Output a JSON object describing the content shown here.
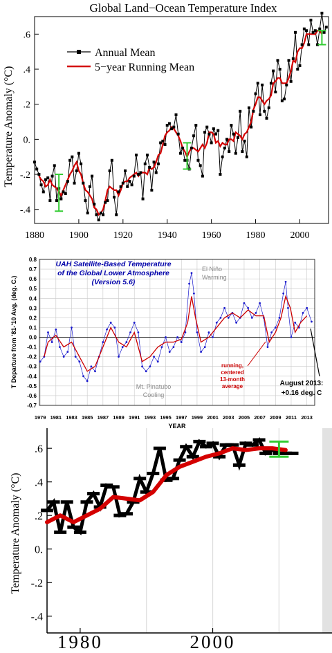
{
  "colors": {
    "annual": "#000000",
    "running": "#d40000",
    "errorbar": "#33cc33",
    "uah_points": "#1a1acc",
    "uah_running": "#cc0000",
    "uah_title": "#0000aa",
    "grid": "#c8c8c8"
  },
  "chart_data": [
    {
      "type": "line",
      "title": "Global Land−Ocean Temperature Index",
      "ylabel": "Temperature Anomaly (°C)",
      "xlim": [
        1880,
        2013
      ],
      "ylim": [
        -0.48,
        0.7
      ],
      "xticks": [
        "1880",
        "1900",
        "1920",
        "1940",
        "1960",
        "1980",
        "2000"
      ],
      "yticks": [
        ".6",
        ".4",
        ".2",
        "0.",
        "-.2",
        "-.4"
      ],
      "grid": false,
      "legend_position": "top-left",
      "legend": [
        "Annual Mean",
        "5−year Running Mean"
      ],
      "series": [
        {
          "name": "Annual Mean",
          "x": [
            1880,
            1881,
            1882,
            1883,
            1884,
            1885,
            1886,
            1887,
            1888,
            1889,
            1890,
            1891,
            1892,
            1893,
            1894,
            1895,
            1896,
            1897,
            1898,
            1899,
            1900,
            1901,
            1902,
            1903,
            1904,
            1905,
            1906,
            1907,
            1908,
            1909,
            1910,
            1911,
            1912,
            1913,
            1914,
            1915,
            1916,
            1917,
            1918,
            1919,
            1920,
            1921,
            1922,
            1923,
            1924,
            1925,
            1926,
            1927,
            1928,
            1929,
            1930,
            1931,
            1932,
            1933,
            1934,
            1935,
            1936,
            1937,
            1938,
            1939,
            1940,
            1941,
            1942,
            1943,
            1944,
            1945,
            1946,
            1947,
            1948,
            1949,
            1950,
            1951,
            1952,
            1953,
            1954,
            1955,
            1956,
            1957,
            1958,
            1959,
            1960,
            1961,
            1962,
            1963,
            1964,
            1965,
            1966,
            1967,
            1968,
            1969,
            1970,
            1971,
            1972,
            1973,
            1974,
            1975,
            1976,
            1977,
            1978,
            1979,
            1980,
            1981,
            1982,
            1983,
            1984,
            1985,
            1986,
            1987,
            1988,
            1989,
            1990,
            1991,
            1992,
            1993,
            1994,
            1995,
            1996,
            1997,
            1998,
            1999,
            2000,
            2001,
            2002,
            2003,
            2004,
            2005,
            2006,
            2007,
            2008,
            2009,
            2010,
            2011,
            2012
          ],
          "values": [
            -0.13,
            -0.17,
            -0.2,
            -0.26,
            -0.3,
            -0.23,
            -0.22,
            -0.35,
            -0.21,
            -0.15,
            -0.35,
            -0.28,
            -0.34,
            -0.3,
            -0.31,
            -0.24,
            -0.12,
            -0.1,
            -0.25,
            -0.18,
            -0.08,
            -0.14,
            -0.25,
            -0.35,
            -0.42,
            -0.27,
            -0.21,
            -0.37,
            -0.43,
            -0.46,
            -0.42,
            -0.43,
            -0.36,
            -0.35,
            -0.18,
            -0.12,
            -0.33,
            -0.43,
            -0.3,
            -0.27,
            -0.25,
            -0.18,
            -0.27,
            -0.24,
            -0.26,
            -0.21,
            -0.09,
            -0.2,
            -0.19,
            -0.34,
            -0.14,
            -0.09,
            -0.16,
            -0.29,
            -0.13,
            -0.19,
            -0.14,
            -0.02,
            -0.01,
            -0.03,
            0.08,
            0.09,
            0.06,
            0.07,
            0.14,
            0.03,
            -0.08,
            -0.05,
            -0.12,
            -0.12,
            -0.17,
            -0.05,
            0.02,
            0.08,
            -0.12,
            -0.15,
            -0.21,
            0.04,
            0.07,
            0.03,
            -0.02,
            0.06,
            0.03,
            0.05,
            -0.2,
            -0.1,
            -0.05,
            0.0,
            -0.07,
            0.08,
            0.03,
            -0.08,
            0.01,
            0.16,
            -0.07,
            -0.01,
            -0.1,
            0.18,
            0.07,
            0.16,
            0.26,
            0.32,
            0.14,
            0.31,
            0.16,
            0.12,
            0.18,
            0.32,
            0.39,
            0.27,
            0.45,
            0.4,
            0.22,
            0.23,
            0.31,
            0.45,
            0.33,
            0.46,
            0.61,
            0.4,
            0.42,
            0.54,
            0.63,
            0.62,
            0.54,
            0.68,
            0.61,
            0.62,
            0.54,
            0.63,
            0.72,
            0.61,
            0.64
          ]
        },
        {
          "name": "5−year Running Mean",
          "x": [
            1882,
            1883,
            1884,
            1885,
            1886,
            1887,
            1888,
            1889,
            1890,
            1891,
            1892,
            1893,
            1894,
            1895,
            1896,
            1897,
            1898,
            1899,
            1900,
            1901,
            1902,
            1903,
            1904,
            1905,
            1906,
            1907,
            1908,
            1909,
            1910,
            1911,
            1912,
            1913,
            1914,
            1915,
            1916,
            1917,
            1918,
            1919,
            1920,
            1921,
            1922,
            1923,
            1924,
            1925,
            1926,
            1927,
            1928,
            1929,
            1930,
            1931,
            1932,
            1933,
            1934,
            1935,
            1936,
            1937,
            1938,
            1939,
            1940,
            1941,
            1942,
            1943,
            1944,
            1945,
            1946,
            1947,
            1948,
            1949,
            1950,
            1951,
            1952,
            1953,
            1954,
            1955,
            1956,
            1957,
            1958,
            1959,
            1960,
            1961,
            1962,
            1963,
            1964,
            1965,
            1966,
            1967,
            1968,
            1969,
            1970,
            1971,
            1972,
            1973,
            1974,
            1975,
            1976,
            1977,
            1978,
            1979,
            1980,
            1981,
            1982,
            1983,
            1984,
            1985,
            1986,
            1987,
            1988,
            1989,
            1990,
            1991,
            1992,
            1993,
            1994,
            1995,
            1996,
            1997,
            1998,
            1999,
            2000,
            2001,
            2002,
            2003,
            2004,
            2005,
            2006,
            2007,
            2008,
            2009,
            2010
          ],
          "values": [
            -0.21,
            -0.23,
            -0.24,
            -0.27,
            -0.26,
            -0.23,
            -0.26,
            -0.27,
            -0.28,
            -0.3,
            -0.32,
            -0.29,
            -0.26,
            -0.23,
            -0.2,
            -0.18,
            -0.15,
            -0.13,
            -0.18,
            -0.2,
            -0.25,
            -0.29,
            -0.3,
            -0.32,
            -0.34,
            -0.39,
            -0.4,
            -0.43,
            -0.42,
            -0.4,
            -0.35,
            -0.29,
            -0.27,
            -0.28,
            -0.29,
            -0.29,
            -0.32,
            -0.29,
            -0.25,
            -0.24,
            -0.24,
            -0.22,
            -0.21,
            -0.2,
            -0.19,
            -0.21,
            -0.19,
            -0.19,
            -0.19,
            -0.2,
            -0.16,
            -0.17,
            -0.16,
            -0.13,
            -0.09,
            -0.08,
            -0.03,
            0.02,
            0.04,
            0.05,
            0.07,
            0.06,
            0.04,
            0.02,
            -0.01,
            -0.05,
            -0.07,
            -0.1,
            -0.07,
            -0.05,
            -0.05,
            -0.06,
            -0.07,
            -0.05,
            -0.03,
            -0.05,
            -0.02,
            0.04,
            0.04,
            0.03,
            -0.02,
            -0.01,
            -0.04,
            -0.02,
            -0.03,
            -0.03,
            0.0,
            0.0,
            -0.01,
            0.04,
            0.03,
            0.02,
            0.0,
            0.03,
            0.04,
            0.07,
            0.1,
            0.17,
            0.2,
            0.24,
            0.24,
            0.22,
            0.2,
            0.22,
            0.23,
            0.25,
            0.32,
            0.33,
            0.35,
            0.35,
            0.32,
            0.32,
            0.32,
            0.35,
            0.39,
            0.45,
            0.44,
            0.5,
            0.52,
            0.52,
            0.55,
            0.6,
            0.6,
            0.6,
            0.6,
            0.6,
            0.62,
            0.62,
            0.6
          ]
        }
      ],
      "uncertainty": [
        {
          "x": 1891,
          "low": -0.41,
          "high": -0.2
        },
        {
          "x": 1949,
          "low": -0.17,
          "high": -0.02
        },
        {
          "x": 2010,
          "low": 0.54,
          "high": 0.62
        }
      ]
    },
    {
      "type": "line",
      "title": "UAH Satellite-Based Temperature\nof the Global Lower Atmosphere\n(Version 5.6)",
      "title_lines": [
        "UAH Satellite-Based Temperature",
        "of the Global Lower Atmosphere",
        "(Version 5.6)"
      ],
      "ylabel": "T Departure from '81-'10 Avg. (deg. C.)",
      "xlabel": "YEAR",
      "xlim": [
        1978.9,
        2014.0
      ],
      "ylim": [
        -0.7,
        0.8
      ],
      "grid": true,
      "xticks": [
        "1979",
        "1981",
        "1983",
        "1985",
        "1987",
        "1989",
        "1991",
        "1993",
        "1995",
        "1997",
        "1999",
        "2001",
        "2003",
        "2005",
        "2007",
        "2009",
        "2011",
        "2013"
      ],
      "yticks": [
        "0.8",
        "0.7",
        "0.6",
        "0.5",
        "0.4",
        "0.3",
        "0.2",
        "0.1",
        "0.0",
        "-0.1",
        "-0.2",
        "-0.3",
        "-0.4",
        "-0.5",
        "-0.6",
        "-0.7"
      ],
      "annotations": [
        {
          "lines": [
            "El Niño",
            "Warming"
          ]
        },
        {
          "lines": [
            "Mt. Pinatubo",
            "Cooling"
          ]
        },
        {
          "lines": [
            "running,",
            "centered",
            "13-month",
            "average"
          ]
        },
        {
          "lines": [
            "August 2013:",
            "+0.16 deg. C"
          ]
        }
      ],
      "series": [
        {
          "name": "monthly",
          "x": [
            1979.0,
            1979.5,
            1980.0,
            1980.5,
            1981.0,
            1981.5,
            1982.0,
            1982.5,
            1983.0,
            1983.5,
            1984.0,
            1984.5,
            1985.0,
            1985.5,
            1986.0,
            1986.5,
            1987.0,
            1987.5,
            1988.0,
            1988.5,
            1989.0,
            1989.5,
            1990.0,
            1990.5,
            1991.0,
            1991.5,
            1992.0,
            1992.5,
            1993.0,
            1993.5,
            1994.0,
            1994.5,
            1995.0,
            1995.5,
            1996.0,
            1996.5,
            1997.0,
            1997.5,
            1998.0,
            1998.3,
            1998.6,
            1999.0,
            1999.5,
            2000.0,
            2000.5,
            2001.0,
            2001.5,
            2002.0,
            2002.5,
            2003.0,
            2003.5,
            2004.0,
            2004.5,
            2005.0,
            2005.5,
            2006.0,
            2006.5,
            2007.0,
            2007.5,
            2008.0,
            2008.5,
            2009.0,
            2009.5,
            2010.0,
            2010.3,
            2010.6,
            2011.0,
            2011.5,
            2012.0,
            2012.5,
            2013.0,
            2013.6
          ],
          "values": [
            -0.25,
            -0.2,
            0.05,
            -0.05,
            0.08,
            -0.1,
            -0.2,
            -0.15,
            0.1,
            -0.2,
            -0.25,
            -0.4,
            -0.45,
            -0.3,
            -0.35,
            -0.2,
            -0.05,
            0.08,
            0.15,
            0.1,
            -0.2,
            -0.1,
            -0.05,
            0.05,
            0.15,
            0.05,
            -0.3,
            -0.35,
            -0.3,
            -0.2,
            -0.25,
            -0.1,
            0.0,
            -0.15,
            -0.1,
            0.0,
            -0.05,
            0.05,
            0.55,
            0.66,
            0.45,
            0.05,
            -0.15,
            -0.1,
            0.05,
            0.0,
            0.15,
            0.2,
            0.3,
            0.2,
            0.25,
            0.15,
            0.2,
            0.35,
            0.3,
            0.2,
            0.25,
            0.35,
            0.2,
            -0.1,
            0.05,
            0.1,
            0.2,
            0.45,
            0.57,
            0.3,
            0.0,
            0.15,
            0.1,
            0.25,
            0.3,
            0.16
          ]
        },
        {
          "name": "running, centered 13-month average",
          "x": [
            1979.5,
            1980.0,
            1981.0,
            1982.0,
            1983.0,
            1984.0,
            1985.0,
            1986.0,
            1987.0,
            1988.0,
            1989.0,
            1990.0,
            1991.0,
            1992.0,
            1993.0,
            1994.0,
            1995.0,
            1996.0,
            1997.0,
            1997.8,
            1998.3,
            1998.8,
            1999.5,
            2000.5,
            2001.5,
            2002.5,
            2003.5,
            2004.5,
            2005.5,
            2006.5,
            2007.5,
            2008.2,
            2009.0,
            2009.7,
            2010.3,
            2010.9,
            2011.5,
            2012.2,
            2013.0
          ],
          "values": [
            -0.2,
            -0.05,
            0.02,
            -0.1,
            -0.05,
            -0.2,
            -0.35,
            -0.3,
            -0.1,
            0.1,
            -0.05,
            -0.1,
            0.05,
            -0.25,
            -0.2,
            -0.1,
            -0.05,
            -0.05,
            -0.02,
            0.15,
            0.42,
            0.2,
            -0.05,
            0.0,
            0.1,
            0.2,
            0.25,
            0.2,
            0.28,
            0.22,
            0.22,
            -0.05,
            0.05,
            0.2,
            0.42,
            0.3,
            0.05,
            0.15,
            0.22
          ]
        }
      ]
    },
    {
      "type": "line",
      "title": "",
      "ylabel": "Temperature Anomaly (°C)",
      "xlim": [
        1975,
        2018
      ],
      "ylim": [
        -0.5,
        0.72
      ],
      "xticks": [
        "1980",
        "2000"
      ],
      "yticks": [
        ".6",
        ".4",
        ".2",
        "0.",
        "-.2",
        "-.4"
      ],
      "grid": true,
      "series": [
        {
          "name": "Annual Mean",
          "x": [
            1975,
            1976,
            1977,
            1978,
            1979,
            1980,
            1981,
            1982,
            1983,
            1984,
            1985,
            1986,
            1987,
            1988,
            1989,
            1990,
            1991,
            1992,
            1993,
            1994,
            1995,
            1996,
            1997,
            1998,
            1999,
            2000,
            2001,
            2002,
            2003,
            2004,
            2005,
            2006,
            2007,
            2008,
            2009,
            2010,
            2011,
            2012
          ],
          "values": [
            0.23,
            0.28,
            0.1,
            0.28,
            0.13,
            0.1,
            0.28,
            0.33,
            0.25,
            0.38,
            0.37,
            0.2,
            0.21,
            0.28,
            0.42,
            0.34,
            0.45,
            0.6,
            0.41,
            0.42,
            0.53,
            0.61,
            0.55,
            0.64,
            0.61,
            0.63,
            0.55,
            0.62,
            0.62,
            0.5,
            0.63,
            0.62,
            0.65,
            0.57,
            0.59,
            0.57,
            0.57,
            0.57
          ]
        },
        {
          "name": "5−year Running Mean",
          "x": [
            1975,
            1977,
            1979,
            1981,
            1983,
            1985,
            1987,
            1989,
            1991,
            1993,
            1995,
            1997,
            1999,
            2001,
            2003,
            2005,
            2007,
            2009,
            2011
          ],
          "values": [
            0.16,
            0.2,
            0.16,
            0.2,
            0.24,
            0.31,
            0.3,
            0.29,
            0.34,
            0.44,
            0.49,
            0.52,
            0.55,
            0.57,
            0.6,
            0.59,
            0.6,
            0.6,
            0.59
          ]
        }
      ],
      "uncertainty": [
        {
          "x": 2010,
          "low": 0.55,
          "high": 0.64
        }
      ]
    }
  ]
}
